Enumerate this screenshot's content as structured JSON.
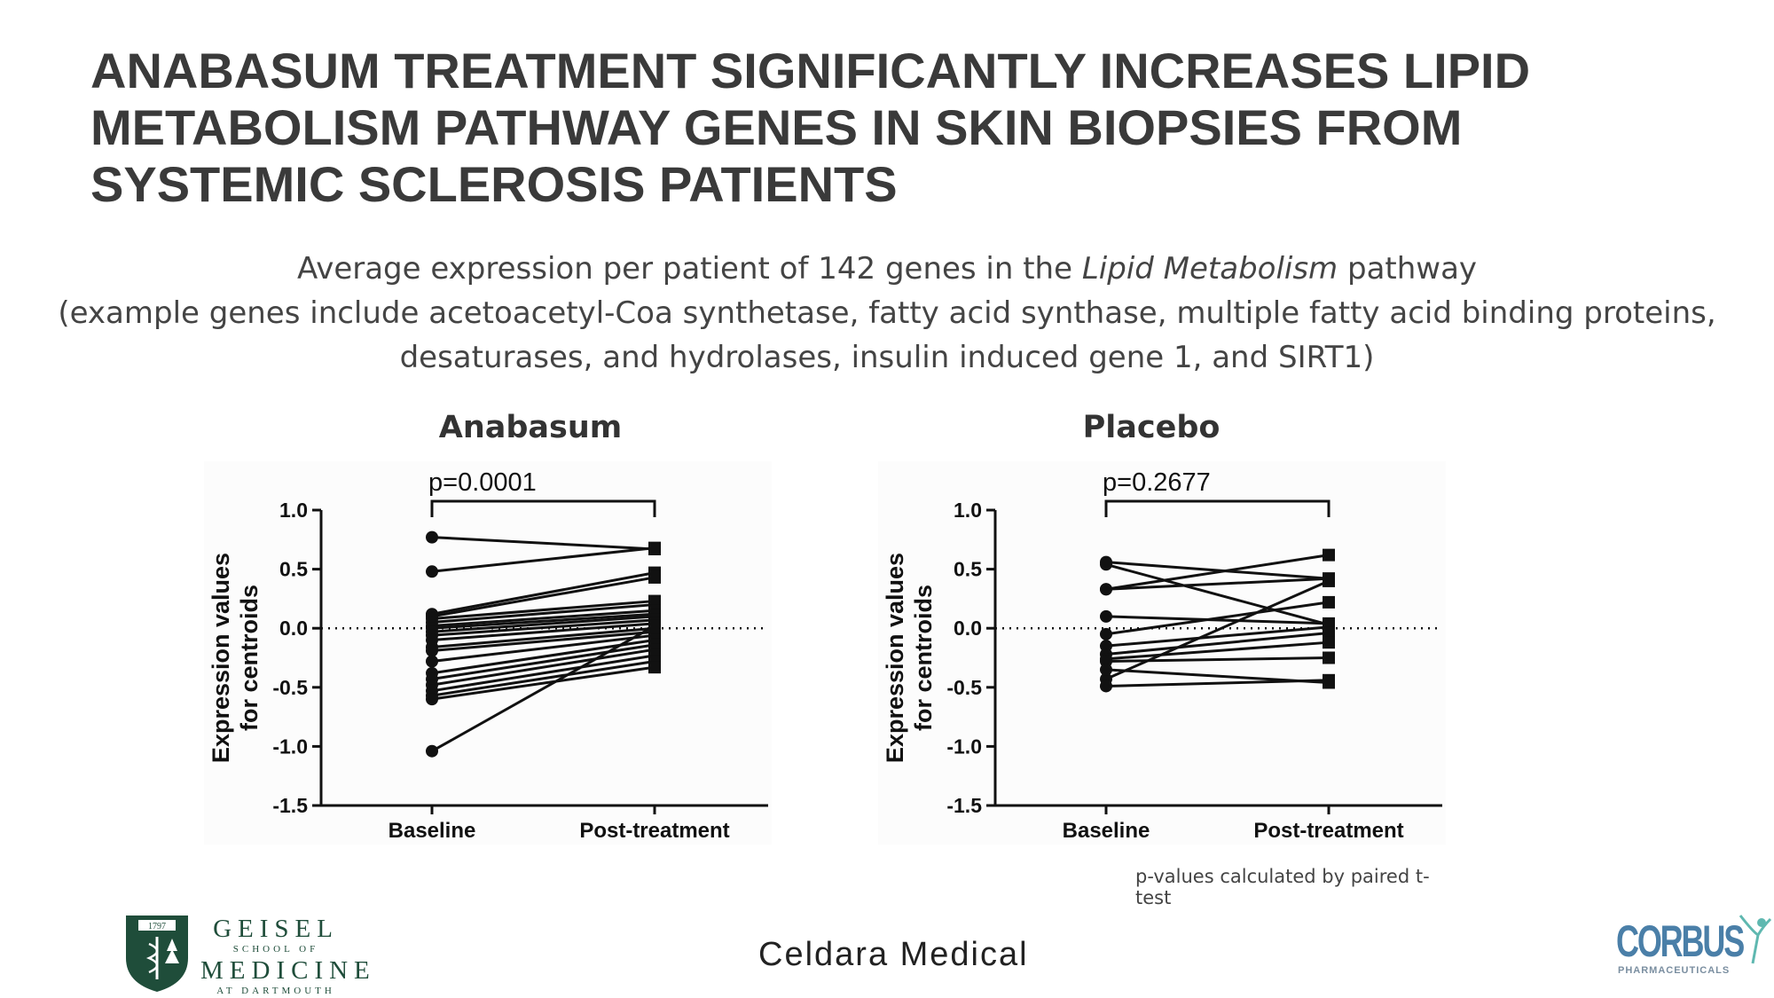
{
  "slide": {
    "title": "ANABASUM TREATMENT SIGNIFICANTLY INCREASES LIPID METABOLISM PATHWAY GENES IN SKIN BIOPSIES FROM SYSTEMIC SCLEROSIS PATIENTS",
    "subtitle_line1_pre": "Average expression per patient of 142 genes in the ",
    "subtitle_line1_italic": "Lipid Metabolism",
    "subtitle_line1_post": " pathway",
    "subtitle_line2": "(example genes include acetoacetyl-Coa synthetase, fatty acid synthase, multiple fatty acid binding proteins,",
    "subtitle_line3": "desaturases, and hydrolases, insulin induced gene 1, and SIRT1)",
    "footnote": "p-values calculated by paired t-test"
  },
  "logos": {
    "geisel": {
      "year": "1797",
      "line1": "GEISEL",
      "line2": "SCHOOL OF",
      "line3": "MEDICINE",
      "line4": "AT DARTMOUTH"
    },
    "celdara": "Celdara Medical",
    "corbus": {
      "name": "CORBUS",
      "sub": "PHARMACEUTICALS"
    }
  },
  "colors": {
    "title": "#3a3a3a",
    "marks": "#111111",
    "geisel_green": "#1f4d3a",
    "corbus_blue": "#4a7fa8",
    "corbus_accent": "#5fb8b0"
  },
  "chart_data": [
    {
      "type": "scatter",
      "title": "Anabasum",
      "annotation": "p=0.0001",
      "ylabel_line1": "Expression values",
      "ylabel_line2": "for centroids",
      "categories": [
        "Baseline",
        "Post-treatment"
      ],
      "ylim": [
        -1.5,
        1.0
      ],
      "yticks": [
        "1.0",
        "0.5",
        "0.0",
        "-0.5",
        "-1.0",
        "-1.5"
      ],
      "reference_line": 0.0,
      "pairs": [
        [
          0.77,
          0.67
        ],
        [
          0.48,
          0.68
        ],
        [
          0.12,
          0.47
        ],
        [
          0.1,
          0.43
        ],
        [
          0.08,
          0.23
        ],
        [
          0.05,
          0.2
        ],
        [
          0.02,
          0.15
        ],
        [
          0.0,
          0.12
        ],
        [
          -0.03,
          0.1
        ],
        [
          -0.06,
          0.07
        ],
        [
          -0.1,
          0.04
        ],
        [
          -0.16,
          0.0
        ],
        [
          -0.19,
          -0.03
        ],
        [
          -0.28,
          -0.06
        ],
        [
          -0.38,
          -0.1
        ],
        [
          -0.43,
          -0.14
        ],
        [
          -0.48,
          -0.18
        ],
        [
          -0.53,
          -0.23
        ],
        [
          -0.57,
          -0.28
        ],
        [
          -0.6,
          -0.33
        ],
        [
          -1.04,
          0.02
        ]
      ]
    },
    {
      "type": "scatter",
      "title": "Placebo",
      "annotation": "p=0.2677",
      "ylabel_line1": "Expression values",
      "ylabel_line2": "for centroids",
      "categories": [
        "Baseline",
        "Post-treatment"
      ],
      "ylim": [
        -1.5,
        1.0
      ],
      "yticks": [
        "1.0",
        "0.5",
        "0.0",
        "-0.5",
        "-1.0",
        "-1.5"
      ],
      "reference_line": 0.0,
      "pairs": [
        [
          0.56,
          0.42
        ],
        [
          0.54,
          0.03
        ],
        [
          0.33,
          0.62
        ],
        [
          0.33,
          0.42
        ],
        [
          0.1,
          0.04
        ],
        [
          -0.05,
          0.22
        ],
        [
          -0.15,
          0.01
        ],
        [
          -0.22,
          -0.04
        ],
        [
          -0.26,
          -0.12
        ],
        [
          -0.28,
          -0.25
        ],
        [
          -0.43,
          0.4
        ],
        [
          -0.49,
          -0.44
        ],
        [
          -0.35,
          -0.46
        ]
      ]
    }
  ]
}
